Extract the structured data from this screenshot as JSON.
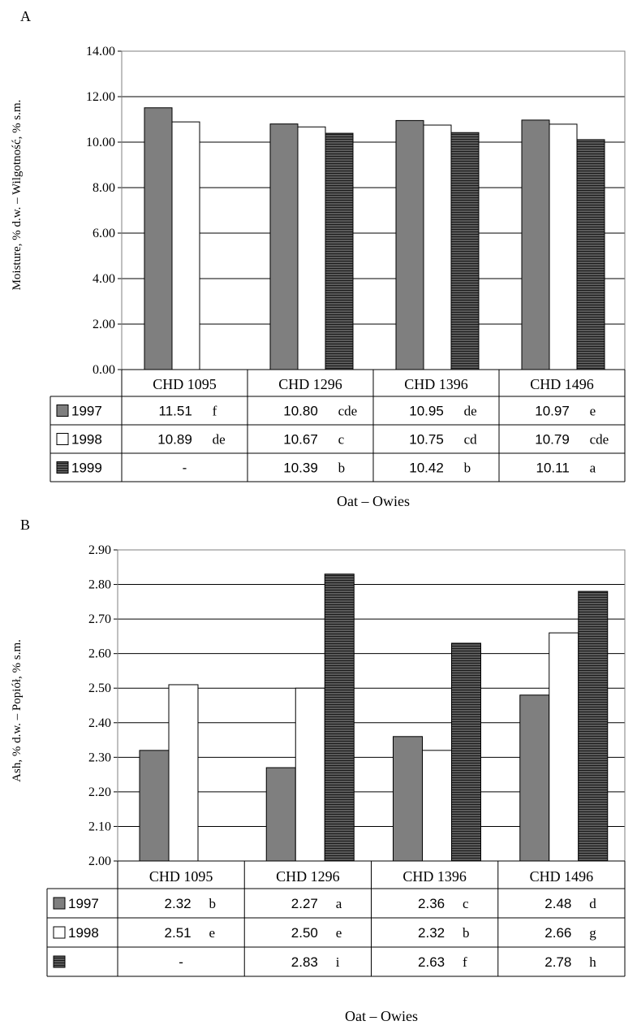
{
  "colors": {
    "series_1997": "#7f7f7f",
    "series_1998": "#ffffff",
    "series_1999": "#5a5a5a",
    "stroke": "#000000",
    "grid": "#000000"
  },
  "chart_data": [
    {
      "panel": "A",
      "type": "bar",
      "ylabel": "Moisture, % d.w. – Wilgotność, % s.m.",
      "xlabel": "Oat – Owies",
      "ylim": [
        0,
        14
      ],
      "yticks": [
        "0.00",
        "2.00",
        "4.00",
        "6.00",
        "8.00",
        "10.00",
        "12.00",
        "14.00"
      ],
      "grid": true,
      "categories": [
        "CHD 1095",
        "CHD 1296",
        "CHD 1396",
        "CHD 1496"
      ],
      "series": [
        {
          "name": "1997",
          "values": [
            11.51,
            10.8,
            10.95,
            10.97
          ],
          "labels": [
            "11.51",
            "10.80",
            "10.95",
            "10.97"
          ],
          "letters": [
            "f",
            "cde",
            "de",
            "e"
          ]
        },
        {
          "name": "1998",
          "values": [
            10.89,
            10.67,
            10.75,
            10.79
          ],
          "labels": [
            "10.89",
            "10.67",
            "10.75",
            "10.79"
          ],
          "letters": [
            "de",
            "c",
            "cd",
            "cde"
          ]
        },
        {
          "name": "1999",
          "values": [
            null,
            10.39,
            10.42,
            10.11
          ],
          "labels": [
            "-",
            "10.39",
            "10.42",
            "10.11"
          ],
          "letters": [
            "",
            "b",
            "b",
            "a"
          ]
        }
      ]
    },
    {
      "panel": "B",
      "type": "bar",
      "ylabel": "Ash, % d.w. – Popiół, % s.m.",
      "xlabel": "Oat – Owies",
      "ylim": [
        2.0,
        2.9
      ],
      "yticks": [
        "2.00",
        "2.10",
        "2.20",
        "2.30",
        "2.40",
        "2.50",
        "2.60",
        "2.70",
        "2.80",
        "2.90"
      ],
      "grid": true,
      "categories": [
        "CHD 1095",
        "CHD 1296",
        "CHD 1396",
        "CHD 1496"
      ],
      "series": [
        {
          "name": "1997",
          "values": [
            2.32,
            2.27,
            2.36,
            2.48
          ],
          "labels": [
            "2.32",
            "2.27",
            "2.36",
            "2.48"
          ],
          "letters": [
            "b",
            "a",
            "c",
            "d"
          ]
        },
        {
          "name": "1998",
          "values": [
            2.51,
            2.5,
            2.32,
            2.66
          ],
          "labels": [
            "2.51",
            "2.50",
            "2.32",
            "2.66"
          ],
          "letters": [
            "e",
            "e",
            "b",
            "g"
          ]
        },
        {
          "name": "",
          "values": [
            null,
            2.83,
            2.63,
            2.78
          ],
          "labels": [
            "-",
            "2.83",
            "2.63",
            "2.78"
          ],
          "letters": [
            "",
            "i",
            "f",
            "h"
          ]
        }
      ]
    }
  ]
}
